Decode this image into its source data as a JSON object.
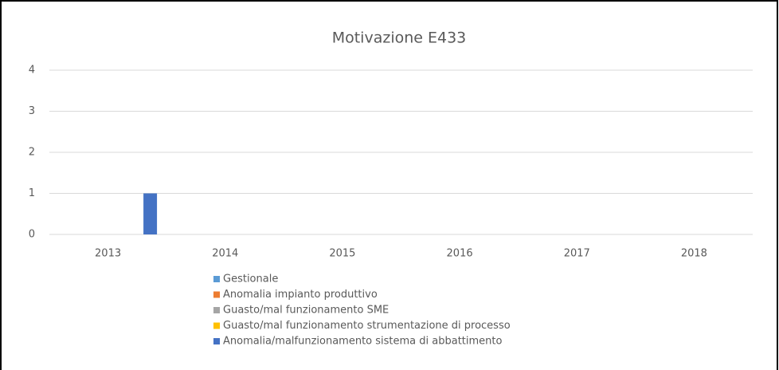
{
  "chart_data": {
    "type": "bar",
    "title": "Motivazione E433",
    "categories": [
      "2013",
      "2014",
      "2015",
      "2016",
      "2017",
      "2018"
    ],
    "series": [
      {
        "name": "Gestionale",
        "color": "#5b9bd5",
        "values": [
          0,
          0,
          0,
          0,
          0,
          0
        ]
      },
      {
        "name": "Anomalia impianto produttivo",
        "color": "#ed7d31",
        "values": [
          0,
          0,
          0,
          0,
          0,
          0
        ]
      },
      {
        "name": "Guasto/mal funzionamento SME",
        "color": "#a5a5a5",
        "values": [
          0,
          0,
          0,
          0,
          0,
          0
        ]
      },
      {
        "name": "Guasto/mal funzionamento strumentazione di processo",
        "color": "#ffc000",
        "values": [
          0,
          0,
          0,
          0,
          0,
          0
        ]
      },
      {
        "name": "Anomalia/malfunzionamento sistema di abbattimento",
        "color": "#4472c4",
        "values": [
          1,
          0,
          0,
          0,
          0,
          0
        ]
      }
    ],
    "ylim": [
      0,
      4
    ],
    "yticks": [
      0,
      1,
      2,
      3,
      4
    ],
    "grid": true,
    "legend": "bottom"
  }
}
